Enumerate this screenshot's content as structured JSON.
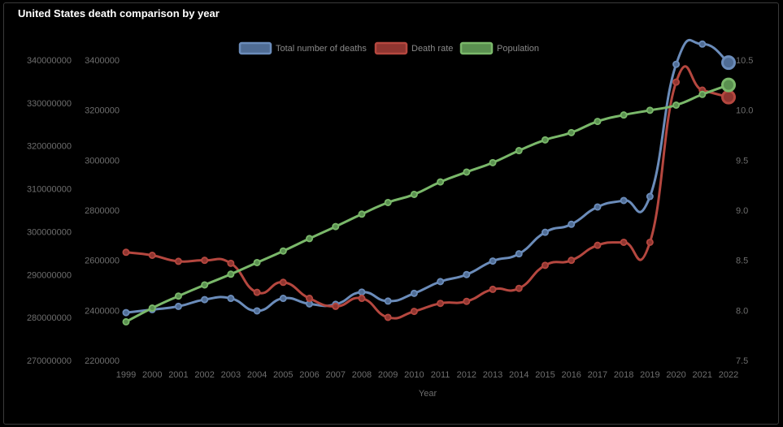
{
  "title": "United States death comparison by year",
  "chart_data": {
    "type": "line",
    "title": "United States death comparison by year",
    "xlabel": "Year",
    "x": [
      "1999",
      "2000",
      "2001",
      "2002",
      "2003",
      "2004",
      "2005",
      "2006",
      "2007",
      "2008",
      "2009",
      "2010",
      "2011",
      "2012",
      "2013",
      "2014",
      "2015",
      "2016",
      "2017",
      "2018",
      "2019",
      "2020",
      "2021",
      "2022"
    ],
    "legend_position": "top",
    "grid": false,
    "axes": {
      "population": {
        "side": "left-outer",
        "min": 270000000,
        "max": 340000000,
        "ticks": [
          "340000000",
          "330000000",
          "320000000",
          "310000000",
          "300000000",
          "290000000",
          "280000000",
          "270000000"
        ]
      },
      "deaths": {
        "side": "left-inner",
        "min": 2200000,
        "max": 3400000,
        "ticks": [
          "3400000",
          "3200000",
          "3000000",
          "2800000",
          "2600000",
          "2400000",
          "2200000"
        ]
      },
      "rate": {
        "side": "right",
        "min": 7.5,
        "max": 10.5,
        "ticks": [
          "10.5",
          "10.0",
          "9.5",
          "9.0",
          "8.5",
          "8.0",
          "7.5"
        ]
      }
    },
    "series": [
      {
        "name": "Total number of deaths",
        "axis": "deaths",
        "color": "#6b8cba",
        "fill": "#4f6c94",
        "values": [
          2391000,
          2403000,
          2416000,
          2443000,
          2448000,
          2398000,
          2448000,
          2426000,
          2424000,
          2473000,
          2437000,
          2468000,
          2515000,
          2543000,
          2597000,
          2626000,
          2712000,
          2744000,
          2813000,
          2839000,
          2855000,
          3383000,
          3464000,
          3390000
        ]
      },
      {
        "name": "Death rate",
        "axis": "rate",
        "color": "#b5473f",
        "fill": "#8f3530",
        "values": [
          8.58,
          8.55,
          8.49,
          8.5,
          8.47,
          8.18,
          8.28,
          8.12,
          8.04,
          8.12,
          7.93,
          7.99,
          8.07,
          8.09,
          8.21,
          8.22,
          8.45,
          8.5,
          8.65,
          8.68,
          8.68,
          10.28,
          10.2,
          10.13
        ]
      },
      {
        "name": "Population",
        "axis": "population",
        "color": "#7ab86a",
        "fill": "#5a9050",
        "values": [
          279000000,
          282200000,
          285000000,
          287600000,
          290100000,
          292800000,
          295500000,
          298400000,
          301200000,
          304100000,
          306800000,
          308700000,
          311600000,
          313900000,
          316100000,
          318900000,
          321400000,
          323100000,
          325700000,
          327200000,
          328300000,
          329500000,
          332000000,
          334200000
        ]
      }
    ]
  }
}
